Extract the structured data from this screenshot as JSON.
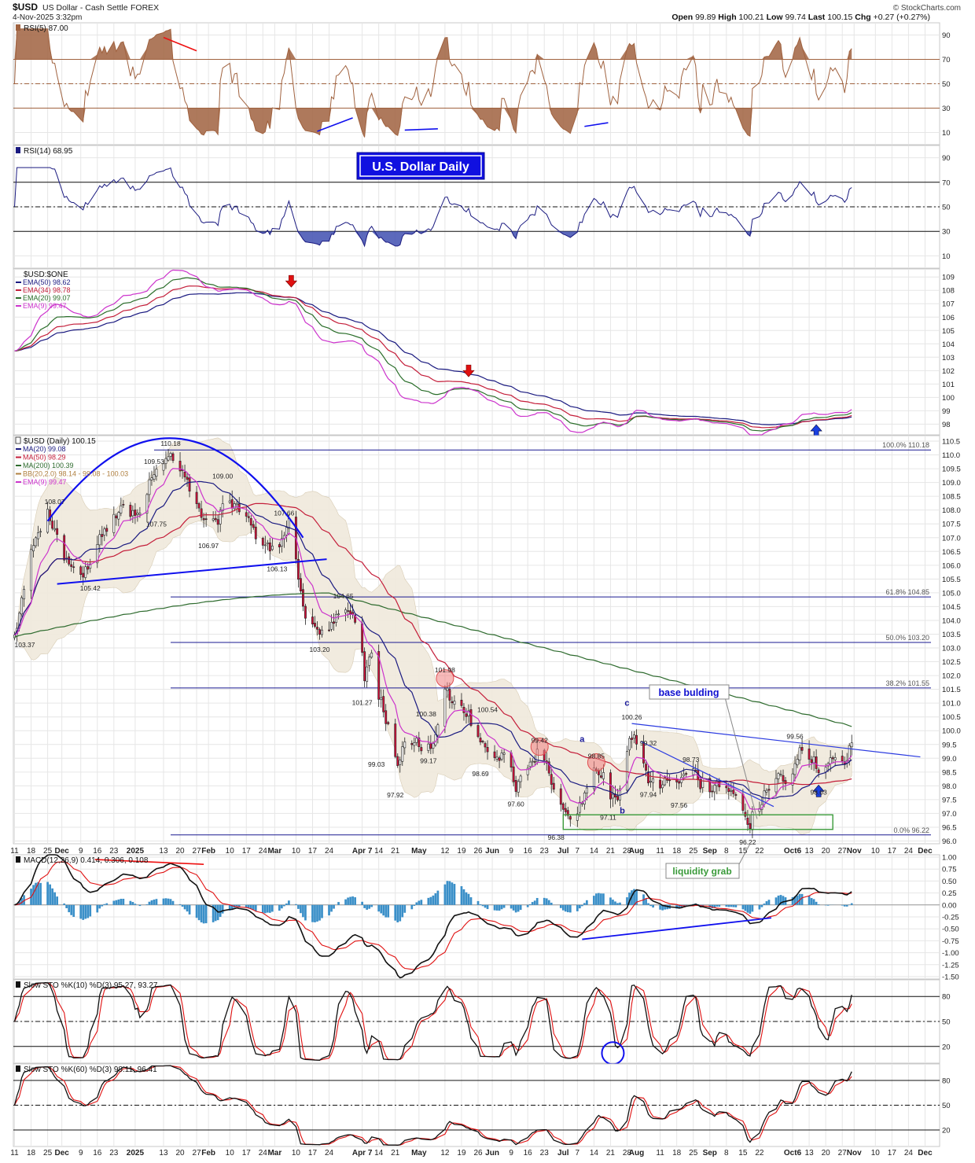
{
  "header": {
    "symbol": "$USD",
    "name": "US Dollar - Cash Settle",
    "exchange": "FOREX",
    "date": "4-Nov-2025 3:32pm",
    "brand": "© StockCharts.com",
    "ohlc": [
      {
        "label": "Open",
        "value": "99.89"
      },
      {
        "label": "High",
        "value": "100.21"
      },
      {
        "label": "Low",
        "value": "99.74"
      },
      {
        "label": "Last",
        "value": "100.15"
      },
      {
        "label": "Chg",
        "value": "+0.27 (+0.27%)"
      }
    ]
  },
  "colors": {
    "ema50": "#1a1a80",
    "ema34": "#c41e3a",
    "ema20": "#2a6e2a",
    "ema9": "#cc33cc",
    "ma20": "#1a1a80",
    "ma50": "#c41e3a",
    "ma200": "#2e6b2e",
    "candle_up": "#ffffff",
    "candle_down": "#d0103a",
    "rsi5": "#a0623f",
    "rsi14": "#1a1a80",
    "grid": "#e6e6e6",
    "trend_blue": "#1010ee",
    "trend_red": "#ee1010"
  },
  "xaxis": {
    "ticks": [
      {
        "label": "11",
        "d": 0
      },
      {
        "label": "18",
        "d": 7
      },
      {
        "label": "25",
        "d": 14
      },
      {
        "label": "Dec",
        "d": 20
      },
      {
        "label": "9",
        "d": 28
      },
      {
        "label": "16",
        "d": 35
      },
      {
        "label": "23",
        "d": 42
      },
      {
        "label": "2025",
        "d": 51
      },
      {
        "label": "13",
        "d": 63
      },
      {
        "label": "20",
        "d": 70
      },
      {
        "label": "27",
        "d": 77
      },
      {
        "label": "Feb",
        "d": 82
      },
      {
        "label": "10",
        "d": 91
      },
      {
        "label": "17",
        "d": 98
      },
      {
        "label": "24",
        "d": 105
      },
      {
        "label": "Mar",
        "d": 110
      },
      {
        "label": "10",
        "d": 119
      },
      {
        "label": "17",
        "d": 126
      },
      {
        "label": "24",
        "d": 133
      },
      {
        "label": "Apr 7",
        "d": 147
      },
      {
        "label": "14",
        "d": 154
      },
      {
        "label": "21",
        "d": 161
      },
      {
        "label": "May",
        "d": 171
      },
      {
        "label": "12",
        "d": 182
      },
      {
        "label": "19",
        "d": 189
      },
      {
        "label": "26",
        "d": 196
      },
      {
        "label": "Jun",
        "d": 202
      },
      {
        "label": "9",
        "d": 210
      },
      {
        "label": "16",
        "d": 217
      },
      {
        "label": "23",
        "d": 224
      },
      {
        "label": "Jul",
        "d": 232
      },
      {
        "label": "7",
        "d": 238
      },
      {
        "label": "14",
        "d": 245
      },
      {
        "label": "21",
        "d": 252
      },
      {
        "label": "28",
        "d": 259
      },
      {
        "label": "Aug",
        "d": 263
      },
      {
        "label": "11",
        "d": 273
      },
      {
        "label": "18",
        "d": 280
      },
      {
        "label": "25",
        "d": 287
      },
      {
        "label": "Sep",
        "d": 294
      },
      {
        "label": "8",
        "d": 301
      },
      {
        "label": "15",
        "d": 308
      },
      {
        "label": "22",
        "d": 315
      },
      {
        "label": "Oct6",
        "d": 329
      },
      {
        "label": "13",
        "d": 336
      },
      {
        "label": "20",
        "d": 343
      },
      {
        "label": "27",
        "d": 350
      },
      {
        "label": "Nov",
        "d": 355
      },
      {
        "label": "10",
        "d": 364
      },
      {
        "label": "17",
        "d": 371
      },
      {
        "label": "24",
        "d": 378
      },
      {
        "label": "Dec",
        "d": 385
      }
    ]
  },
  "chart_data": [
    {
      "type": "line",
      "id": "rsi5",
      "title": "RSI(5) 87.00",
      "ylim": [
        0,
        100
      ],
      "yticks": [
        10,
        30,
        50,
        70,
        90
      ],
      "levels": [
        70,
        50,
        30
      ],
      "series": [
        {
          "name": "RSI(5)",
          "last": 87.0
        }
      ],
      "annotations": [
        {
          "type": "trendline",
          "color": "red",
          "from": {
            "d": 63,
            "v": 88
          },
          "to": {
            "d": 77,
            "v": 77
          }
        },
        {
          "type": "trendline",
          "color": "blue",
          "from": {
            "d": 128,
            "v": 11
          },
          "to": {
            "d": 143,
            "v": 22
          }
        },
        {
          "type": "trendline",
          "color": "blue",
          "from": {
            "d": 165,
            "v": 12
          },
          "to": {
            "d": 179,
            "v": 13
          }
        },
        {
          "type": "trendline",
          "color": "blue",
          "from": {
            "d": 241,
            "v": 15
          },
          "to": {
            "d": 251,
            "v": 18
          }
        }
      ]
    },
    {
      "type": "line",
      "id": "rsi14",
      "title": "RSI(14) 68.95",
      "ylim": [
        0,
        100
      ],
      "yticks": [
        10,
        30,
        50,
        70,
        90
      ],
      "levels": [
        70,
        50,
        30
      ],
      "series": [
        {
          "name": "RSI(14)",
          "last": 68.95
        }
      ],
      "annotation_text": "U.S. Dollar Daily"
    },
    {
      "type": "line",
      "id": "ema",
      "title": "$USD:$ONE",
      "ylim": [
        97.2,
        109.6
      ],
      "yticks": [
        98,
        99,
        100,
        101,
        102,
        103,
        104,
        105,
        106,
        107,
        108,
        109
      ],
      "legend": [
        {
          "label": "EMA(50) 98.62",
          "colorKey": "ema50"
        },
        {
          "label": "EMA(34) 98.78",
          "colorKey": "ema34"
        },
        {
          "label": "EMA(20) 99.07",
          "colorKey": "ema20"
        },
        {
          "label": "EMA(9) 99.47",
          "colorKey": "ema9"
        }
      ],
      "markers": [
        {
          "d": 117,
          "v": 108.3,
          "dir": "down",
          "color": "red"
        },
        {
          "d": 192,
          "v": 101.6,
          "dir": "down",
          "color": "red"
        },
        {
          "d": 339,
          "v": 97.9,
          "dir": "up",
          "color": "blue"
        }
      ]
    },
    {
      "type": "candlestick",
      "id": "price",
      "title": "$USD (Daily) 100.15",
      "ylim": [
        95.9,
        110.7
      ],
      "yticks": [
        96.0,
        96.5,
        97.0,
        97.5,
        98.0,
        98.5,
        99.0,
        99.5,
        100.0,
        100.5,
        101.0,
        101.5,
        102.0,
        102.5,
        103.0,
        103.5,
        104.0,
        104.5,
        105.0,
        105.5,
        106.0,
        106.5,
        107.0,
        107.5,
        108.0,
        108.5,
        109.0,
        109.5,
        110.0,
        110.5
      ],
      "legend": [
        {
          "label": "MA(20) 99.08",
          "colorKey": "ma20"
        },
        {
          "label": "MA(50) 98.29",
          "colorKey": "ma50"
        },
        {
          "label": "MA(200) 100.39",
          "colorKey": "ma200"
        },
        {
          "label": "BB(20,2.0) 98.14 - 99.08 - 100.03",
          "color": "#b08040"
        },
        {
          "label": "EMA(9) 99.47",
          "colorKey": "ema9"
        }
      ],
      "fib": [
        {
          "label": "100.0% 110.18",
          "v": 110.18,
          "from": 59
        },
        {
          "label": "61.8% 104.85",
          "v": 104.85,
          "from": 66
        },
        {
          "label": "50.0% 103.20",
          "v": 103.2,
          "from": 66
        },
        {
          "label": "38.2% 101.55",
          "v": 101.55,
          "from": 66
        },
        {
          "label": "0.0% 96.22",
          "v": 96.22,
          "from": 66
        }
      ],
      "pivot_labels": [
        {
          "text": "110.18",
          "d": 66,
          "v": 110.18,
          "pos": "above"
        },
        {
          "text": "109.00",
          "d": 88,
          "v": 109.0,
          "pos": "above"
        },
        {
          "text": "109.53",
          "d": 59,
          "v": 109.53,
          "pos": "above"
        },
        {
          "text": "108.07",
          "d": 17,
          "v": 108.07,
          "pos": "above"
        },
        {
          "text": "107.75",
          "d": 60,
          "v": 107.75,
          "pos": "below"
        },
        {
          "text": "107.66",
          "d": 114,
          "v": 107.66,
          "pos": "above"
        },
        {
          "text": "106.97",
          "d": 82,
          "v": 106.97,
          "pos": "below"
        },
        {
          "text": "106.13",
          "d": 111,
          "v": 106.13,
          "pos": "below"
        },
        {
          "text": "105.42",
          "d": 32,
          "v": 105.42,
          "pos": "below"
        },
        {
          "text": "104.65",
          "d": 139,
          "v": 104.65,
          "pos": "above"
        },
        {
          "text": "103.37",
          "d": 0,
          "v": 103.37,
          "pos": "below"
        },
        {
          "text": "103.20",
          "d": 129,
          "v": 103.2,
          "pos": "below"
        },
        {
          "text": "101.98",
          "d": 182,
          "v": 101.98,
          "pos": "above"
        },
        {
          "text": "101.27",
          "d": 147,
          "v": 101.27,
          "pos": "below"
        },
        {
          "text": "100.54",
          "d": 200,
          "v": 100.54,
          "pos": "above"
        },
        {
          "text": "100.38",
          "d": 174,
          "v": 100.38,
          "pos": "above"
        },
        {
          "text": "100.26",
          "d": 261,
          "v": 100.26,
          "pos": "above"
        },
        {
          "text": "99.56",
          "d": 330,
          "v": 99.56,
          "pos": "above"
        },
        {
          "text": "99.42",
          "d": 222,
          "v": 99.42,
          "pos": "above"
        },
        {
          "text": "99.32",
          "d": 268,
          "v": 99.32,
          "pos": "above"
        },
        {
          "text": "99.17",
          "d": 175,
          "v": 99.17,
          "pos": "below"
        },
        {
          "text": "99.03",
          "d": 153,
          "v": 99.03,
          "pos": "below"
        },
        {
          "text": "98.85",
          "d": 246,
          "v": 98.85,
          "pos": "above"
        },
        {
          "text": "98.73",
          "d": 286,
          "v": 98.73,
          "pos": "above"
        },
        {
          "text": "98.69",
          "d": 197,
          "v": 98.69,
          "pos": "below"
        },
        {
          "text": "98.03",
          "d": 340,
          "v": 98.03,
          "pos": "below"
        },
        {
          "text": "97.94",
          "d": 268,
          "v": 97.94,
          "pos": "below"
        },
        {
          "text": "97.92",
          "d": 161,
          "v": 97.92,
          "pos": "below"
        },
        {
          "text": "97.60",
          "d": 212,
          "v": 97.6,
          "pos": "below"
        },
        {
          "text": "97.56",
          "d": 281,
          "v": 97.56,
          "pos": "below"
        },
        {
          "text": "97.11",
          "d": 251,
          "v": 97.11,
          "pos": "below"
        },
        {
          "text": "96.38",
          "d": 229,
          "v": 96.38,
          "pos": "below"
        },
        {
          "text": "96.22",
          "d": 310,
          "v": 96.22,
          "pos": "below"
        }
      ],
      "wave_labels": [
        {
          "text": "a",
          "d": 240,
          "v": 99.6
        },
        {
          "text": "b",
          "d": 257,
          "v": 97.0
        },
        {
          "text": "c",
          "d": 259,
          "v": 100.9
        }
      ],
      "callouts": [
        {
          "text": "base bulding",
          "target": {
            "d": 314,
            "v": 96.8
          }
        },
        {
          "text": "liquidity grab",
          "target": {
            "d": 311,
            "v": 96.3
          }
        }
      ]
    },
    {
      "type": "line",
      "id": "macd",
      "title": "MACD(12,26,9) 0.414, 0.306, 0.108",
      "ylim": [
        -1.55,
        1.05
      ],
      "yticks": [
        1.0,
        0.75,
        0.5,
        0.25,
        0.0,
        -0.25,
        -0.5,
        -0.75,
        -1.0,
        -1.25,
        -1.5
      ],
      "series": [
        {
          "name": "MACD",
          "last": 0.414
        },
        {
          "name": "Signal",
          "last": 0.306
        },
        {
          "name": "Histogram",
          "last": 0.108
        }
      ]
    },
    {
      "type": "line",
      "id": "sto10",
      "title": "Slow STO %K(10) %D(3) 95.27, 93.27",
      "ylim": [
        0,
        100
      ],
      "yticks": [
        20,
        50,
        80
      ],
      "levels": [
        80,
        50,
        20
      ],
      "series": [
        {
          "name": "%K",
          "last": 95.27
        },
        {
          "name": "%D",
          "last": 93.27
        }
      ]
    },
    {
      "type": "line",
      "id": "sto60",
      "title": "Slow STO %K(60) %D(3) 98.11, 96.41",
      "ylim": [
        0,
        100
      ],
      "yticks": [
        20,
        50,
        80
      ],
      "levels": [
        80,
        50,
        20
      ],
      "series": [
        {
          "name": "%K",
          "last": 98.11
        },
        {
          "name": "%D",
          "last": 96.41
        }
      ]
    }
  ]
}
